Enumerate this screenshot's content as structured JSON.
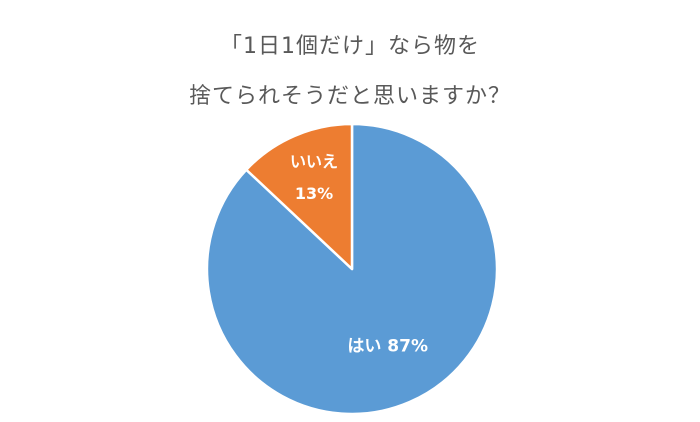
{
  "title_lines": [
    "「1日1個だけ」なら物を",
    "捨てられそうだと思いますか？"
  ],
  "chart_data": {
    "type": "pie",
    "title": "「1日1個だけ」なら物を捨てられそうだと思いますか？",
    "slices": [
      {
        "label": "はい",
        "value": 87,
        "value_label": "87%",
        "color": "#5B9BD5"
      },
      {
        "label": "いいえ",
        "value": 13,
        "value_label": "13%",
        "color": "#ED7D31"
      }
    ],
    "start": "12 o'clock",
    "direction": "clockwise"
  }
}
